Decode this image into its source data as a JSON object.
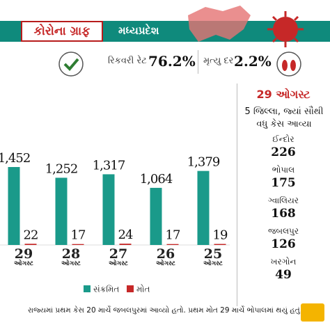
{
  "header": {
    "title": "કોરોના ગ્રાફ",
    "state": "મધ્યપ્રદેશ"
  },
  "stats": [
    {
      "label": "રિકવરી રેટ",
      "value": "76.2%"
    },
    {
      "label": "મૃત્યુ દર",
      "value": "2.2%"
    }
  ],
  "panel": {
    "date": "29 ઓગસ્ટ",
    "subtitle": "5 જિલ્લા, જ્યાં સૌથી વધુ કેસ આવ્યા",
    "districts": [
      {
        "name": "ઈન્દોર",
        "cases": 226
      },
      {
        "name": "ભોપાલ",
        "cases": 175
      },
      {
        "name": "ગ્વાલિયર",
        "cases": 168
      },
      {
        "name": "જબલપુર",
        "cases": 126
      },
      {
        "name": "ખરગોન",
        "cases": 49
      }
    ]
  },
  "footer": "રાજ્યમાં પ્રથમ કેસ 20 માર્ચે જબલપુરમાં આવ્યો હતો. પ્રથમ મોત 29 માર્ચે ભોપાલમાં થયું હતું.",
  "chart_data": {
    "type": "bar",
    "categories": [
      "29 ઓગસ્ટ",
      "28 ઓગસ્ટ",
      "27 ઓગસ્ટ",
      "26 ઓગસ્ટ",
      "25 ઓગસ્ટ"
    ],
    "series": [
      {
        "name": "સંક્રમિત",
        "color": "#1a9a8a",
        "values": [
          1452,
          1252,
          1317,
          1064,
          1379
        ],
        "value_labels": [
          "1,452",
          "1,252",
          "1,317",
          "1,064",
          "1,379"
        ]
      },
      {
        "name": "મોત",
        "color": "#c62828",
        "values": [
          22,
          17,
          24,
          17,
          19
        ]
      }
    ]
  }
}
